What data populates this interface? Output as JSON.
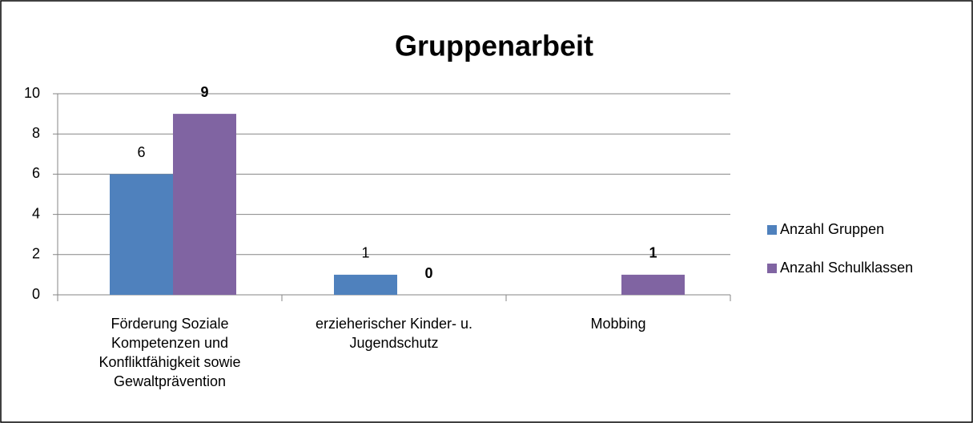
{
  "chart_data": {
    "type": "bar",
    "title": "Gruppenarbeit",
    "categories": [
      "Förderung Soziale Kompetenzen und Konfliktfähigkeit sowie Gewaltprävention",
      "erzieherischer Kinder- u. Jugendschutz",
      "Mobbing"
    ],
    "series": [
      {
        "name": "Anzahl Gruppen",
        "color": "#4f81bd",
        "values": [
          6,
          1,
          null
        ]
      },
      {
        "name": "Anzahl Schulklassen",
        "color": "#8064a2",
        "values": [
          9,
          0,
          1
        ]
      }
    ],
    "ylim": [
      0,
      10
    ],
    "yticks": [
      0,
      2,
      4,
      6,
      8,
      10
    ],
    "grid": true,
    "legend": "right"
  }
}
